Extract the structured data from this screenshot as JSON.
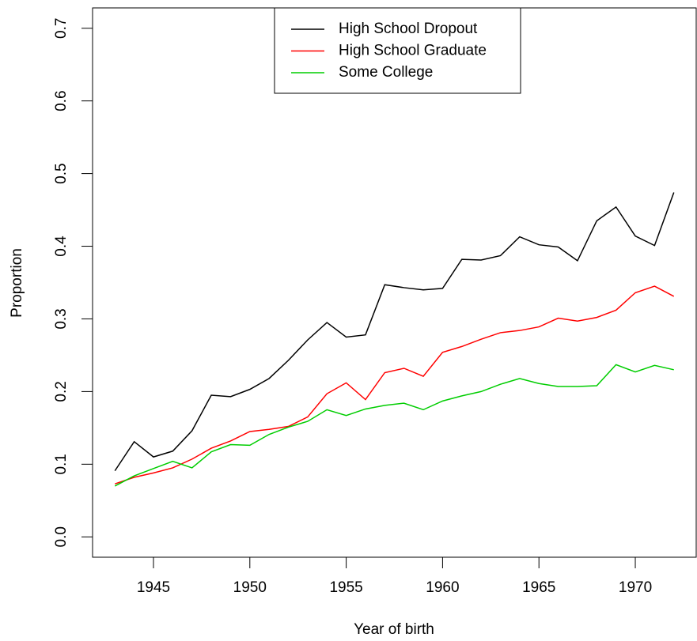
{
  "chart_data": {
    "type": "line",
    "x_label": "Year of birth",
    "y_label": "Proportion",
    "x": [
      1943,
      1944,
      1945,
      1946,
      1947,
      1948,
      1949,
      1950,
      1951,
      1952,
      1953,
      1954,
      1955,
      1956,
      1957,
      1958,
      1959,
      1960,
      1961,
      1962,
      1963,
      1964,
      1965,
      1966,
      1967,
      1968,
      1969,
      1970,
      1971,
      1972
    ],
    "series": [
      {
        "name": "High School Dropout",
        "color": "#000000",
        "values": [
          0.091,
          0.131,
          0.11,
          0.118,
          0.146,
          0.195,
          0.193,
          0.203,
          0.218,
          0.243,
          0.271,
          0.295,
          0.275,
          0.278,
          0.347,
          0.343,
          0.34,
          0.342,
          0.382,
          0.381,
          0.387,
          0.413,
          0.402,
          0.399,
          0.38,
          0.435,
          0.454,
          0.414,
          0.401,
          0.474
        ]
      },
      {
        "name": "High School Graduate",
        "color": "#ff0000",
        "values": [
          0.073,
          0.082,
          0.088,
          0.095,
          0.107,
          0.122,
          0.132,
          0.145,
          0.148,
          0.152,
          0.165,
          0.197,
          0.212,
          0.189,
          0.226,
          0.232,
          0.221,
          0.254,
          0.262,
          0.272,
          0.281,
          0.284,
          0.289,
          0.301,
          0.297,
          0.302,
          0.312,
          0.336,
          0.345,
          0.331
        ]
      },
      {
        "name": "Some College",
        "color": "#00cd00",
        "values": [
          0.07,
          0.084,
          0.094,
          0.104,
          0.095,
          0.117,
          0.127,
          0.126,
          0.141,
          0.151,
          0.159,
          0.175,
          0.167,
          0.176,
          0.181,
          0.184,
          0.175,
          0.187,
          0.194,
          0.2,
          0.21,
          0.218,
          0.211,
          0.207,
          0.207,
          0.208,
          0.237,
          0.227,
          0.236,
          0.23
        ]
      }
    ],
    "xlim": [
      1941.84,
      1973.16
    ],
    "ylim": [
      -0.028,
      0.728
    ],
    "xticks": [
      1945,
      1950,
      1955,
      1960,
      1965,
      1970
    ],
    "yticks": [
      {
        "value": 0,
        "label": "0.0"
      },
      0.1,
      0.2,
      0.3,
      0.4,
      0.5,
      0.6,
      0.7
    ],
    "legend": "top"
  }
}
